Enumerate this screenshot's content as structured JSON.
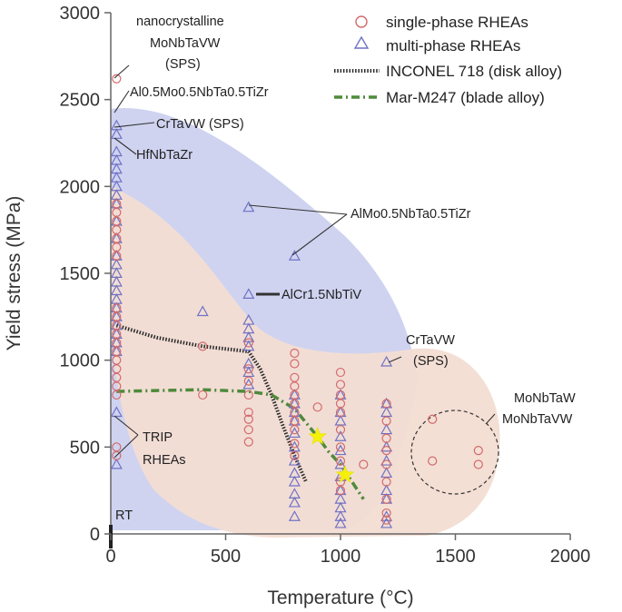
{
  "chart_data": {
    "type": "scatter",
    "title": "",
    "xlabel": "Temperature (°C)",
    "ylabel": "Yield stress (MPa)",
    "xlim": [
      0,
      2000
    ],
    "ylim": [
      0,
      3000
    ],
    "xticks": [
      "0",
      "500",
      "1000",
      "1500",
      "2000"
    ],
    "yticks": [
      "0",
      "500",
      "1000",
      "1500",
      "2000",
      "2500",
      "3000"
    ],
    "grid": false,
    "legend_placement": "top-right",
    "colors": {
      "single_phase": "#d26a6a",
      "multi_phase": "#6f72c4",
      "inconel": "#2a2a2a",
      "marm": "#4e8a3a",
      "multi_region": "#cfd3f0",
      "single_region": "#f3ddd3",
      "star": "#f5f00a"
    },
    "series": [
      {
        "name": "single-phase RHEAs",
        "marker": "circle",
        "points": [
          [
            25,
            2620
          ],
          [
            25,
            1900
          ],
          [
            25,
            1850
          ],
          [
            25,
            1800
          ],
          [
            25,
            1750
          ],
          [
            25,
            1700
          ],
          [
            25,
            1650
          ],
          [
            25,
            1600
          ],
          [
            25,
            1300
          ],
          [
            25,
            1250
          ],
          [
            25,
            1200
          ],
          [
            25,
            1150
          ],
          [
            25,
            1100
          ],
          [
            25,
            1050
          ],
          [
            25,
            1000
          ],
          [
            25,
            950
          ],
          [
            25,
            900
          ],
          [
            25,
            850
          ],
          [
            25,
            800
          ],
          [
            25,
            500
          ],
          [
            25,
            450
          ],
          [
            400,
            1080
          ],
          [
            400,
            800
          ],
          [
            600,
            1100
          ],
          [
            600,
            950
          ],
          [
            600,
            880
          ],
          [
            600,
            800
          ],
          [
            600,
            700
          ],
          [
            600,
            660
          ],
          [
            600,
            600
          ],
          [
            600,
            530
          ],
          [
            800,
            1040
          ],
          [
            800,
            980
          ],
          [
            800,
            900
          ],
          [
            800,
            850
          ],
          [
            800,
            800
          ],
          [
            800,
            750
          ],
          [
            800,
            700
          ],
          [
            800,
            650
          ],
          [
            800,
            600
          ],
          [
            800,
            520
          ],
          [
            800,
            450
          ],
          [
            900,
            730
          ],
          [
            1000,
            930
          ],
          [
            1000,
            860
          ],
          [
            1000,
            800
          ],
          [
            1000,
            750
          ],
          [
            1000,
            700
          ],
          [
            1000,
            600
          ],
          [
            1000,
            500
          ],
          [
            1000,
            420
          ],
          [
            1000,
            300
          ],
          [
            1000,
            250
          ],
          [
            1100,
            400
          ],
          [
            1200,
            750
          ],
          [
            1200,
            650
          ],
          [
            1200,
            550
          ],
          [
            1200,
            480
          ],
          [
            1200,
            400
          ],
          [
            1200,
            300
          ],
          [
            1200,
            200
          ],
          [
            1200,
            120
          ],
          [
            1200,
            80
          ],
          [
            1400,
            660
          ],
          [
            1400,
            420
          ],
          [
            1600,
            480
          ],
          [
            1600,
            400
          ]
        ]
      },
      {
        "name": "multi-phase RHEAs",
        "marker": "triangle",
        "points": [
          [
            25,
            2350
          ],
          [
            25,
            2300
          ],
          [
            25,
            2200
          ],
          [
            25,
            2150
          ],
          [
            25,
            2100
          ],
          [
            25,
            2050
          ],
          [
            25,
            2000
          ],
          [
            25,
            1950
          ],
          [
            25,
            1900
          ],
          [
            25,
            1800
          ],
          [
            25,
            1700
          ],
          [
            25,
            1600
          ],
          [
            25,
            1550
          ],
          [
            25,
            1500
          ],
          [
            25,
            1450
          ],
          [
            25,
            1400
          ],
          [
            25,
            1350
          ],
          [
            25,
            1300
          ],
          [
            25,
            1250
          ],
          [
            25,
            1200
          ],
          [
            25,
            1150
          ],
          [
            25,
            1100
          ],
          [
            25,
            1050
          ],
          [
            25,
            700
          ],
          [
            25,
            400
          ],
          [
            400,
            1280
          ],
          [
            600,
            1880
          ],
          [
            600,
            1380
          ],
          [
            600,
            1230
          ],
          [
            600,
            1180
          ],
          [
            600,
            1130
          ],
          [
            600,
            1080
          ],
          [
            600,
            980
          ],
          [
            600,
            930
          ],
          [
            600,
            860
          ],
          [
            800,
            1600
          ],
          [
            800,
            800
          ],
          [
            800,
            750
          ],
          [
            800,
            700
          ],
          [
            800,
            650
          ],
          [
            800,
            580
          ],
          [
            800,
            500
          ],
          [
            800,
            420
          ],
          [
            800,
            350
          ],
          [
            800,
            300
          ],
          [
            800,
            230
          ],
          [
            800,
            180
          ],
          [
            800,
            100
          ],
          [
            1000,
            800
          ],
          [
            1000,
            700
          ],
          [
            1000,
            650
          ],
          [
            1000,
            560
          ],
          [
            1000,
            480
          ],
          [
            1000,
            400
          ],
          [
            1000,
            330
          ],
          [
            1000,
            250
          ],
          [
            1000,
            200
          ],
          [
            1000,
            150
          ],
          [
            1000,
            100
          ],
          [
            1000,
            60
          ],
          [
            1200,
            990
          ],
          [
            1200,
            750
          ],
          [
            1200,
            700
          ],
          [
            1200,
            600
          ],
          [
            1200,
            500
          ],
          [
            1200,
            420
          ],
          [
            1200,
            350
          ],
          [
            1200,
            250
          ],
          [
            1200,
            200
          ],
          [
            1200,
            100
          ],
          [
            1200,
            60
          ]
        ]
      },
      {
        "name": "INCONEL 718 (disk alloy)",
        "style": "dotted-line",
        "points": [
          [
            25,
            1200
          ],
          [
            200,
            1130
          ],
          [
            400,
            1080
          ],
          [
            600,
            1050
          ],
          [
            650,
            950
          ],
          [
            700,
            800
          ],
          [
            750,
            620
          ],
          [
            800,
            450
          ],
          [
            850,
            300
          ]
        ]
      },
      {
        "name": "Mar-M247 (blade alloy)",
        "style": "dash-dot-line",
        "points": [
          [
            25,
            820
          ],
          [
            200,
            825
          ],
          [
            400,
            830
          ],
          [
            600,
            820
          ],
          [
            700,
            800
          ],
          [
            800,
            720
          ],
          [
            850,
            640
          ],
          [
            900,
            560
          ],
          [
            950,
            470
          ],
          [
            1000,
            400
          ],
          [
            1050,
            300
          ],
          [
            1100,
            200
          ]
        ]
      },
      {
        "name": "stars",
        "marker": "star",
        "points": [
          [
            900,
            560
          ],
          [
            1020,
            340
          ]
        ]
      }
    ],
    "annotations": [
      "nanocrystalline",
      "MoNbTaVW",
      "(SPS)",
      "Al0.5Mo0.5NbTa0.5TiZr",
      "CrTaVW (SPS)",
      "HfNbTaZr",
      "AlMo0.5NbTa0.5TiZr",
      "AlCr1.5NbTiV",
      "CrTaVW",
      "(SPS)",
      "MoNbTaW",
      "MoNbTaVW",
      "TRIP",
      "RHEAs",
      "RT"
    ]
  }
}
